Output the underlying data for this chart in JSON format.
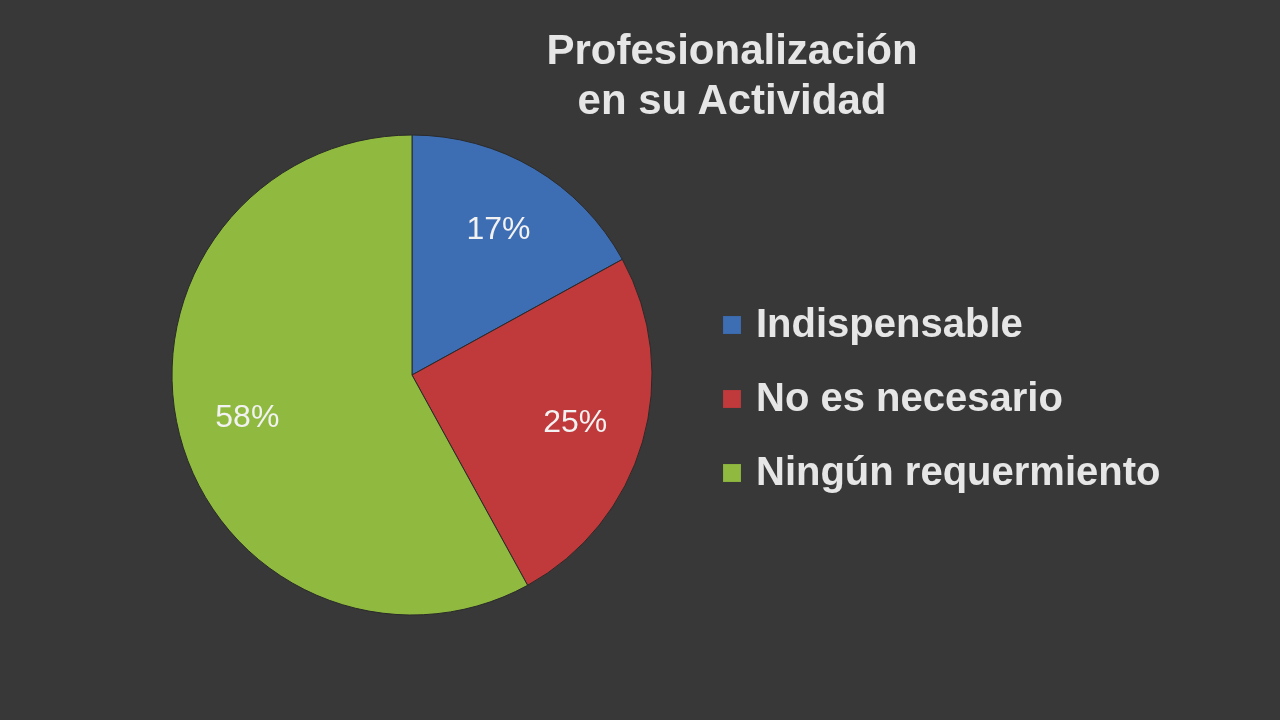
{
  "chart_data": {
    "type": "pie",
    "title": "Profesionalización en su Actividad",
    "categories": [
      "Indispensable",
      "No es necesario",
      "Ningún requermiento"
    ],
    "values": [
      17,
      25,
      58
    ],
    "value_labels": [
      "17%",
      "25%",
      "58%"
    ],
    "colors": [
      "#3d6db3",
      "#c0393b",
      "#8fb93f"
    ],
    "legend": "right"
  }
}
